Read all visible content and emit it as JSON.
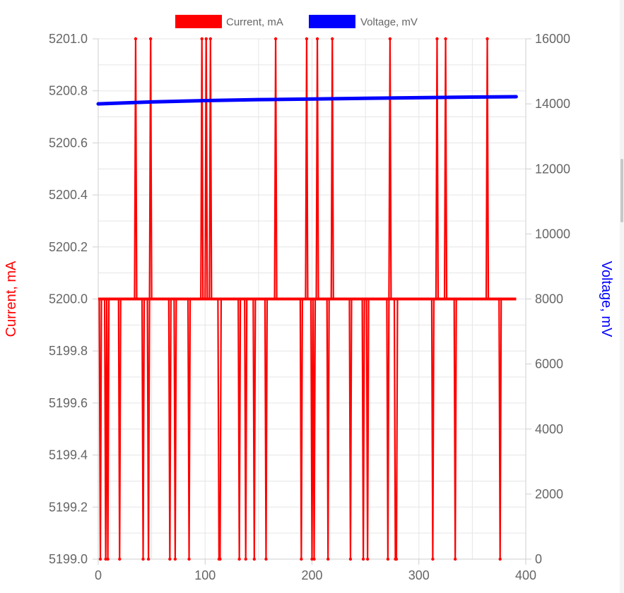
{
  "chart_data": {
    "type": "line",
    "legend_position": "top",
    "grid": true,
    "x_axis": {
      "ticks": [
        "0",
        "100",
        "200",
        "300",
        "400"
      ],
      "range": [
        0,
        400
      ]
    },
    "y_left": {
      "label": "Current, mA",
      "color": "#ff0000",
      "range": [
        5199.0,
        5201.0
      ],
      "ticks": [
        "5201.0",
        "5200.8",
        "5200.6",
        "5200.4",
        "5200.2",
        "5200.0",
        "5199.8",
        "5199.6",
        "5199.4",
        "5199.2",
        "5199.0"
      ]
    },
    "y_right": {
      "label": "Voltage, mV",
      "color": "#0000ff",
      "range": [
        0,
        16000
      ],
      "ticks": [
        "16000",
        "14000",
        "12000",
        "10000",
        "8000",
        "6000",
        "4000",
        "2000",
        "0"
      ]
    },
    "series": [
      {
        "name": "Current, mA",
        "axis": "left",
        "color": "#ff0000",
        "baseline": 5200,
        "x_end": 391,
        "spikes_up": [
          35,
          49,
          97,
          101,
          105,
          166,
          195,
          205,
          219,
          273,
          317,
          325,
          364
        ],
        "spikes_down": [
          2,
          7,
          9,
          20,
          42,
          47,
          67,
          72,
          85,
          113,
          114,
          132,
          138,
          146,
          157,
          190,
          200,
          202,
          215,
          236,
          248,
          252,
          271,
          278,
          279,
          313,
          334,
          376
        ],
        "max": 5201,
        "min": 5199
      },
      {
        "name": "Voltage, mV",
        "axis": "right",
        "color": "#0000ff",
        "x": [
          0,
          50,
          100,
          150,
          200,
          250,
          300,
          350,
          391
        ],
        "values": [
          14000,
          14060,
          14100,
          14130,
          14150,
          14170,
          14190,
          14210,
          14220
        ]
      }
    ]
  }
}
